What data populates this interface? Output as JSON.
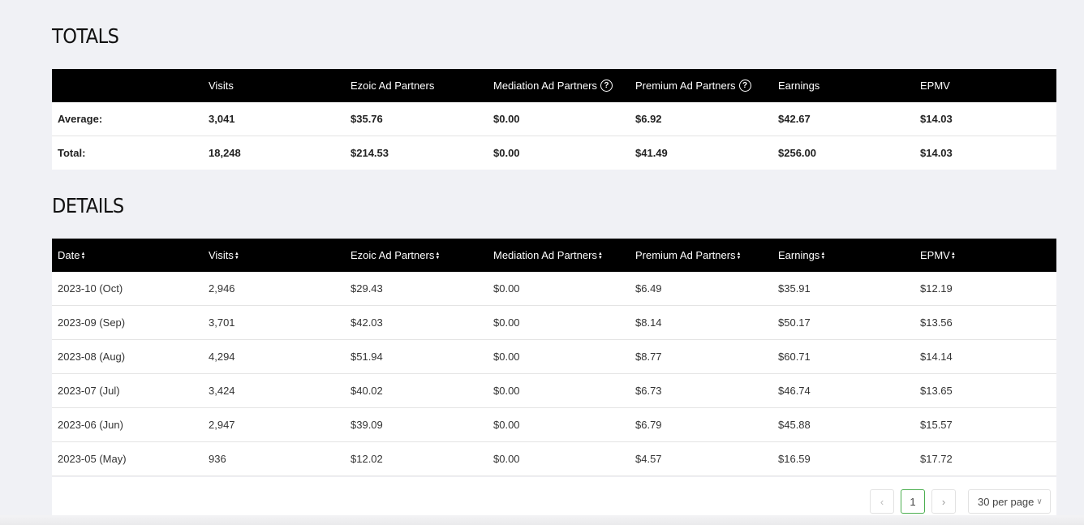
{
  "totals": {
    "title": "TOTALS",
    "headers": [
      "",
      "Visits",
      "Ezoic Ad Partners",
      "Mediation Ad Partners",
      "Premium Ad Partners",
      "Earnings",
      "EPMV"
    ],
    "rows": [
      [
        "Average:",
        "3,041",
        "$35.76",
        "$0.00",
        "$6.92",
        "$42.67",
        "$14.03"
      ],
      [
        "Total:",
        "18,248",
        "$214.53",
        "$0.00",
        "$41.49",
        "$256.00",
        "$14.03"
      ]
    ],
    "help_icon_glyph": "?"
  },
  "details": {
    "title": "DETAILS",
    "headers": [
      "Date",
      "Visits",
      "Ezoic Ad Partners",
      "Mediation Ad Partners",
      "Premium Ad Partners",
      "Earnings",
      "EPMV"
    ],
    "rows": [
      [
        "2023-10 (Oct)",
        "2,946",
        "$29.43",
        "$0.00",
        "$6.49",
        "$35.91",
        "$12.19"
      ],
      [
        "2023-09 (Sep)",
        "3,701",
        "$42.03",
        "$0.00",
        "$8.14",
        "$50.17",
        "$13.56"
      ],
      [
        "2023-08 (Aug)",
        "4,294",
        "$51.94",
        "$0.00",
        "$8.77",
        "$60.71",
        "$14.14"
      ],
      [
        "2023-07 (Jul)",
        "3,424",
        "$40.02",
        "$0.00",
        "$6.73",
        "$46.74",
        "$13.65"
      ],
      [
        "2023-06 (Jun)",
        "2,947",
        "$39.09",
        "$0.00",
        "$6.79",
        "$45.88",
        "$15.57"
      ],
      [
        "2023-05 (May)",
        "936",
        "$12.02",
        "$0.00",
        "$4.57",
        "$16.59",
        "$17.72"
      ]
    ]
  },
  "pagination": {
    "prev_glyph": "‹",
    "current_page": "1",
    "next_glyph": "›",
    "page_size": "30 per page",
    "page_size_chevron": "∨"
  },
  "colors": {
    "header_bg": "#000000",
    "page_bg": "#f0f1f5",
    "active_page_border": "#4caf50"
  }
}
